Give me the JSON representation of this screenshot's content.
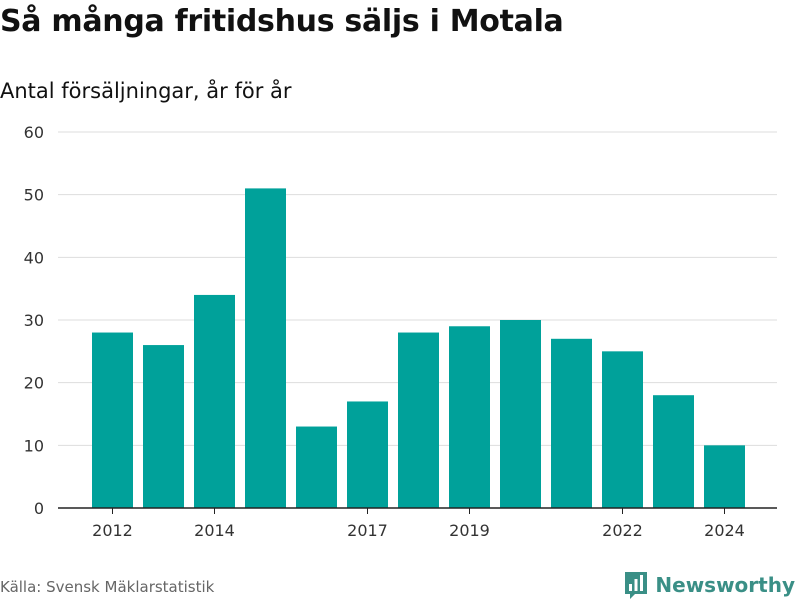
{
  "title": "Så många fritidshus säljs i Motala",
  "subtitle": "Antal försäljningar, år för år",
  "source": "Källa: Svensk Mäklarstatistik",
  "brand": "Newsworthy",
  "colors": {
    "bar": "#00a19a",
    "grid": "#dddddd",
    "axis": "#222222",
    "brand": "#3a8f86"
  },
  "brand_icon": "bar-chart-speech-bubble-icon",
  "chart_data": {
    "type": "bar",
    "x": [
      2012,
      2013,
      2014,
      2015,
      2016,
      2017,
      2018,
      2019,
      2020,
      2021,
      2022,
      2023,
      2024
    ],
    "values": [
      28,
      26,
      34,
      51,
      13,
      17,
      28,
      29,
      30,
      27,
      25,
      18,
      10
    ],
    "x_tick_labels": [
      "2012",
      "2014",
      "2017",
      "2019",
      "2022",
      "2024"
    ],
    "y_ticks": [
      0,
      10,
      20,
      30,
      40,
      50,
      60
    ],
    "ylim": [
      0,
      60
    ],
    "grid": true,
    "legend": "none"
  }
}
